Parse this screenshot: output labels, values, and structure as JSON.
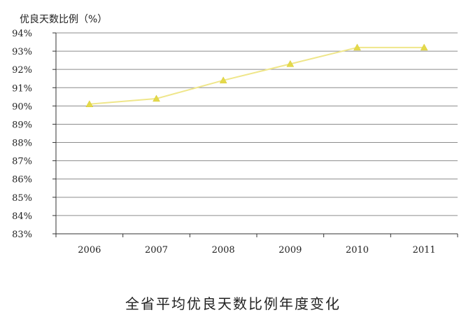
{
  "chart_data": {
    "type": "line",
    "title": "全省平均优良天数比例年度变化",
    "ylabel": "优良天数比例（%）",
    "xlabel": "",
    "categories": [
      "2006",
      "2007",
      "2008",
      "2009",
      "2010",
      "2011"
    ],
    "yticks": [
      "94%",
      "93%",
      "92%",
      "91%",
      "90%",
      "89%",
      "88%",
      "87%",
      "86%",
      "85%",
      "84%",
      "83%"
    ],
    "ylim": [
      83,
      94
    ],
    "series": [
      {
        "values": [
          90.1,
          90.4,
          91.4,
          92.3,
          93.2,
          93.2
        ]
      }
    ],
    "grid": true,
    "line_color": "#efe68a",
    "marker_color": "#e4d94a",
    "marker": "triangle",
    "legend": "none"
  }
}
